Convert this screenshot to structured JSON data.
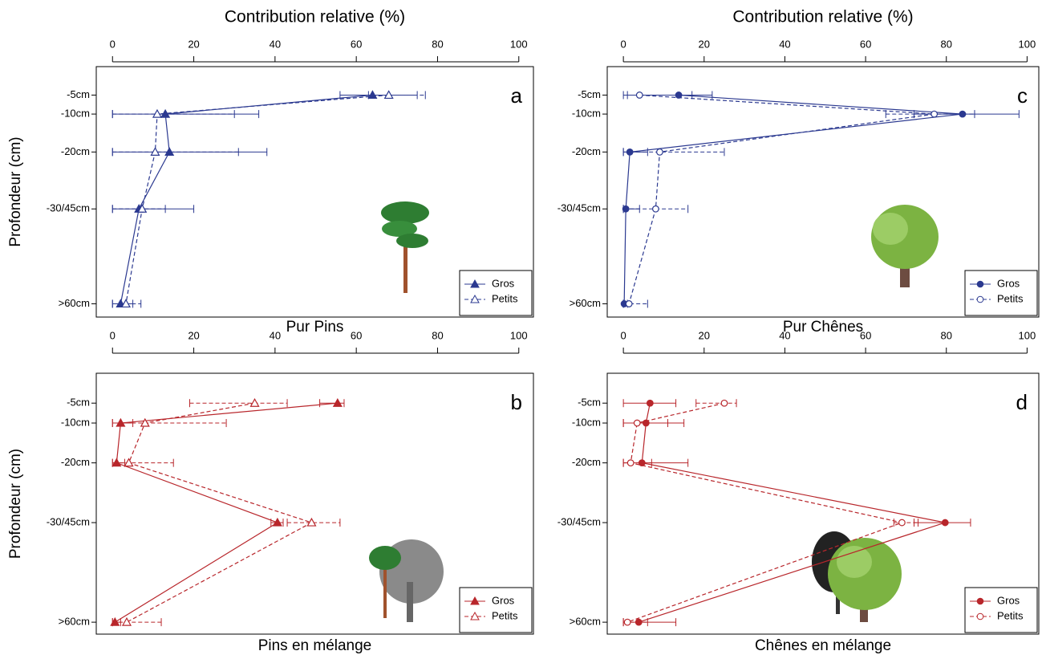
{
  "chart_data": [
    {
      "type": "line",
      "panel_label": "a",
      "x_label": "Contribution relative (%)",
      "y_label": "Profondeur (cm)",
      "subtitle": "Pur Pins",
      "xlim": [
        -4,
        103.6
      ],
      "xticks": [
        0,
        20,
        40,
        60,
        80,
        100
      ],
      "ylim": [
        -2.5,
        63.5
      ],
      "y_inverted": true,
      "yticks": [
        {
          "value": 5,
          "label": "-5cm"
        },
        {
          "value": 10,
          "label": "-10cm"
        },
        {
          "value": 20,
          "label": "-20cm"
        },
        {
          "value": 35,
          "label": "-30/45cm"
        },
        {
          "value": 60,
          "label": ">60cm"
        }
      ],
      "legend": "bottom-right",
      "series": [
        {
          "name": "Gros",
          "color": "#2b3990",
          "marker": "triangle",
          "filled": true,
          "dashed": false,
          "values": [
            64,
            13,
            14,
            6.5,
            2
          ],
          "lower": [
            56,
            0,
            0,
            0,
            0
          ],
          "upper": [
            75,
            36,
            38,
            20,
            5
          ]
        },
        {
          "name": "Petits",
          "color": "#2b3990",
          "marker": "triangle",
          "filled": false,
          "dashed": true,
          "values": [
            68,
            11,
            10.5,
            7.3,
            3.3
          ],
          "lower": [
            63,
            0,
            0,
            0,
            0
          ],
          "upper": [
            77,
            30,
            31,
            13,
            7
          ]
        }
      ]
    },
    {
      "type": "line",
      "panel_label": "b",
      "y_label": "Profondeur (cm)",
      "subtitle": "Pins en mélange",
      "xlim": [
        -4,
        103.6
      ],
      "xticks": [
        0,
        20,
        40,
        60,
        80,
        100
      ],
      "ylim": [
        -2.5,
        63
      ],
      "y_inverted": true,
      "yticks": [
        {
          "value": 5,
          "label": "-5cm"
        },
        {
          "value": 10,
          "label": "-10cm"
        },
        {
          "value": 20,
          "label": "-20cm"
        },
        {
          "value": 35,
          "label": "-30/45cm"
        },
        {
          "value": 60,
          "label": ">60cm"
        }
      ],
      "legend": "bottom-right",
      "series": [
        {
          "name": "Gros",
          "color": "#b8262b",
          "marker": "triangle",
          "filled": true,
          "dashed": false,
          "values": [
            55.4,
            2,
            1,
            40.6,
            0.6
          ],
          "lower": [
            51,
            0,
            0,
            39,
            0
          ],
          "upper": [
            57,
            5,
            3,
            42,
            2
          ]
        },
        {
          "name": "Petits",
          "color": "#b8262b",
          "marker": "triangle",
          "filled": false,
          "dashed": true,
          "values": [
            35,
            8,
            4,
            49,
            3.5
          ],
          "lower": [
            19,
            0,
            0,
            43,
            0
          ],
          "upper": [
            43,
            28,
            15,
            56,
            12
          ]
        }
      ]
    },
    {
      "type": "line",
      "panel_label": "c",
      "x_label": "Contribution relative (%)",
      "subtitle": "Pur Chênes",
      "xlim": [
        -4,
        102.9
      ],
      "xticks": [
        0,
        20,
        40,
        60,
        80,
        100
      ],
      "ylim": [
        -2.5,
        63.5
      ],
      "y_inverted": true,
      "yticks": [
        {
          "value": 5,
          "label": "-5cm"
        },
        {
          "value": 10,
          "label": "-10cm"
        },
        {
          "value": 20,
          "label": "-20cm"
        },
        {
          "value": 35,
          "label": "-30/45cm"
        },
        {
          "value": 60,
          "label": ">60cm"
        }
      ],
      "legend": "bottom-right",
      "series": [
        {
          "name": "Gros",
          "color": "#2b3990",
          "marker": "circle",
          "filled": true,
          "dashed": false,
          "values": [
            13.7,
            84,
            1.6,
            0.6,
            0.2
          ],
          "lower": [
            1,
            72,
            0,
            0,
            0
          ],
          "upper": [
            22,
            98,
            6,
            4,
            1
          ]
        },
        {
          "name": "Petits",
          "color": "#2b3990",
          "marker": "circle",
          "filled": false,
          "dashed": true,
          "values": [
            4,
            77,
            9,
            8,
            1.4
          ],
          "lower": [
            0,
            65,
            0,
            0,
            0
          ],
          "upper": [
            17,
            87,
            25,
            16,
            6
          ]
        }
      ]
    },
    {
      "type": "line",
      "panel_label": "d",
      "subtitle": "Chênes en mélange",
      "xlim": [
        -4,
        102.9
      ],
      "xticks": [
        0,
        20,
        40,
        60,
        80,
        100
      ],
      "ylim": [
        -2.5,
        63
      ],
      "y_inverted": true,
      "yticks": [
        {
          "value": 5,
          "label": "-5cm"
        },
        {
          "value": 10,
          "label": "-10cm"
        },
        {
          "value": 20,
          "label": "-20cm"
        },
        {
          "value": 35,
          "label": "-30/45cm"
        },
        {
          "value": 60,
          "label": ">60cm"
        }
      ],
      "legend": "bottom-right",
      "series": [
        {
          "name": "Gros",
          "color": "#b8262b",
          "marker": "circle",
          "filled": true,
          "dashed": false,
          "values": [
            6.6,
            5.6,
            4.6,
            79.7,
            3.8
          ],
          "lower": [
            0,
            0,
            0,
            72,
            0
          ],
          "upper": [
            13,
            15,
            16,
            86,
            13
          ]
        },
        {
          "name": "Petits",
          "color": "#b8262b",
          "marker": "circle",
          "filled": false,
          "dashed": true,
          "values": [
            25,
            3.4,
            1.8,
            69,
            1
          ],
          "lower": [
            18,
            0,
            0,
            67,
            0
          ],
          "upper": [
            28,
            11,
            7,
            73,
            6
          ]
        }
      ]
    }
  ]
}
